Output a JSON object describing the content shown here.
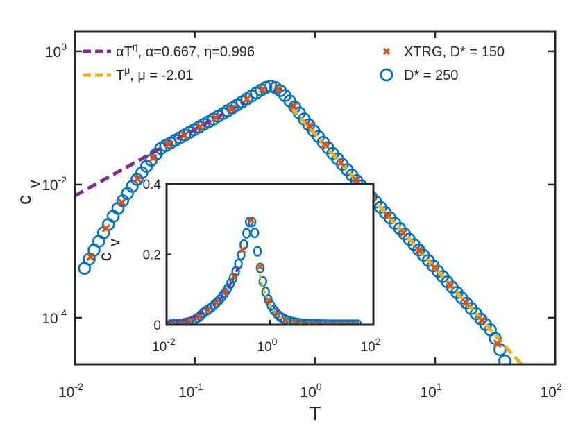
{
  "chart_data": {
    "type": "line",
    "title": "",
    "xlabel": "T",
    "ylabel": "c",
    "ylabel_sub": "v",
    "xscale": "log",
    "yscale": "log",
    "xlim": [
      0.01,
      100
    ],
    "ylim": [
      2e-05,
      2
    ],
    "xticks": [
      {
        "base": "10",
        "exp": "-2"
      },
      {
        "base": "10",
        "exp": "-1"
      },
      {
        "base": "10",
        "exp": "0"
      },
      {
        "base": "10",
        "exp": "1"
      },
      {
        "base": "10",
        "exp": "2"
      }
    ],
    "yticks": [
      {
        "base": "10",
        "exp": "0"
      },
      {
        "base": "10",
        "exp": "-2"
      },
      {
        "base": "10",
        "exp": "-4"
      }
    ],
    "legend_left": [
      {
        "label": "αT",
        "sup": "η",
        "rest": ", α=0.667, η=0.996",
        "color": "#7E2F8E"
      },
      {
        "label": "T",
        "sup": "μ",
        "rest": ", μ = -2.01",
        "color": "#EDB120"
      }
    ],
    "legend_right": [
      {
        "label": "XTRG, D* = 150",
        "color": "#D95319"
      },
      {
        "label": "D* = 250",
        "color": "#0072BD"
      }
    ],
    "series": [
      {
        "name": "XTRG, D* = 150",
        "color": "#D95319",
        "x_range": [
          0.012,
          50
        ],
        "peak_T": 0.45,
        "peak_cv": 0.34
      },
      {
        "name": "D* = 250",
        "color": "#0072BD",
        "x_range": [
          0.012,
          50
        ],
        "peak_T": 0.45,
        "peak_cv": 0.34
      },
      {
        "name": "fit alpha T^eta",
        "color": "#7E2F8E",
        "alpha": 0.667,
        "eta": 0.996,
        "x_range": [
          0.01,
          0.25
        ]
      },
      {
        "name": "fit T^mu",
        "color": "#EDB120",
        "mu": -2.01,
        "x_range": [
          0.63,
          60
        ]
      }
    ],
    "inset": {
      "xscale": "log",
      "yscale": "linear",
      "xlim": [
        0.01,
        100
      ],
      "ylim": [
        0,
        0.4
      ],
      "ylabel": "c",
      "ylabel_sub": "v",
      "xticks": [
        {
          "base": "10",
          "exp": "-2"
        },
        {
          "base": "10",
          "exp": "0"
        },
        {
          "base": "10",
          "exp": "2"
        }
      ],
      "yticks": [
        "0",
        "0.2",
        "0.4"
      ]
    }
  }
}
